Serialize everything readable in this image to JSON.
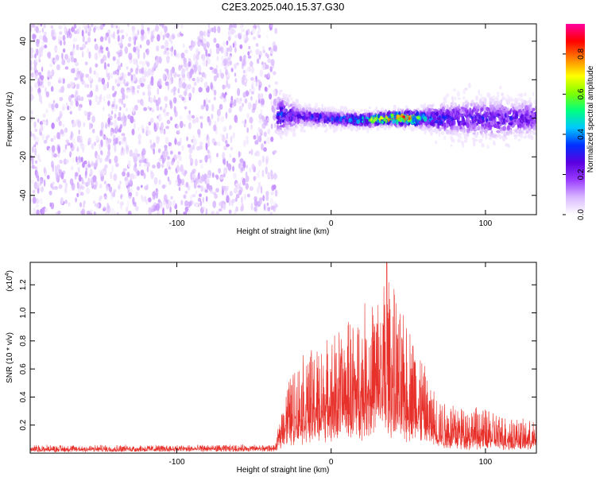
{
  "chart_data": [
    {
      "type": "heatmap",
      "title": "C2E3.2025.040.15.37.G30",
      "xlabel": "Height of straight line (km)",
      "ylabel": "Frequency (Hz)",
      "xlim": [
        -195,
        133
      ],
      "ylim": [
        -50,
        49
      ],
      "x_ticks": [
        -100,
        0,
        100
      ],
      "x_tick_labels": [
        "-100",
        "0",
        "100"
      ],
      "y_ticks": [
        -40,
        -20,
        0,
        20,
        40
      ],
      "y_tick_labels": [
        "-40",
        "-20",
        "0",
        "20",
        "40"
      ],
      "grid": false,
      "noise_region": {
        "x_range": [
          -195,
          -35
        ],
        "freq_range": [
          -50,
          49
        ],
        "typical_amplitude": 0.1
      },
      "signal_band": {
        "x_range": [
          -35,
          133
        ],
        "center_freq": [
          {
            "x": -33,
            "y": 2
          },
          {
            "x": -20,
            "y": 1
          },
          {
            "x": 0,
            "y": 0
          },
          {
            "x": 20,
            "y": -1
          },
          {
            "x": 40,
            "y": 0
          },
          {
            "x": 55,
            "y": 0
          },
          {
            "x": 70,
            "y": 0
          },
          {
            "x": 90,
            "y": 0
          },
          {
            "x": 110,
            "y": 0
          },
          {
            "x": 133,
            "y": 0
          }
        ],
        "half_width_hz": [
          {
            "x": -33,
            "y": 12
          },
          {
            "x": -20,
            "y": 6
          },
          {
            "x": 0,
            "y": 5
          },
          {
            "x": 30,
            "y": 4
          },
          {
            "x": 55,
            "y": 5
          },
          {
            "x": 75,
            "y": 10
          },
          {
            "x": 100,
            "y": 12
          },
          {
            "x": 133,
            "y": 11
          }
        ],
        "peak_amplitude": [
          {
            "x": -33,
            "y": 0.35
          },
          {
            "x": -20,
            "y": 0.3
          },
          {
            "x": 0,
            "y": 0.35
          },
          {
            "x": 20,
            "y": 0.55
          },
          {
            "x": 35,
            "y": 0.8
          },
          {
            "x": 50,
            "y": 0.9
          },
          {
            "x": 60,
            "y": 0.45
          },
          {
            "x": 80,
            "y": 0.3
          },
          {
            "x": 110,
            "y": 0.3
          },
          {
            "x": 133,
            "y": 0.25
          }
        ]
      },
      "colorbar": {
        "label": "Normalized spectral amplitude",
        "range": [
          0,
          0.95
        ],
        "ticks": [
          0.0,
          0.2,
          0.4,
          0.6,
          0.8
        ],
        "tick_labels": [
          "0.0",
          "0.2",
          "0.4",
          "0.6",
          "0.8"
        ],
        "colormap": [
          "#ffffff",
          "#d9b8ff",
          "#9a3cff",
          "#5a00e0",
          "#0030ff",
          "#00c8ff",
          "#00ff80",
          "#80ff00",
          "#ffff00",
          "#ff8000",
          "#ff0000",
          "#ff00a0"
        ]
      }
    },
    {
      "type": "line",
      "xlabel": "Height of straight line (km)",
      "ylabel": "SNR (10 * v/v)",
      "y_multiplier": "(x10",
      "y_multiplier_exp": "4",
      "y_multiplier_close": ")",
      "xlim": [
        -195,
        133
      ],
      "ylim": [
        0,
        1.36
      ],
      "x_ticks": [
        -100,
        0,
        100
      ],
      "x_tick_labels": [
        "-100",
        "0",
        "100"
      ],
      "y_ticks": [
        0.2,
        0.4,
        0.6,
        0.8,
        1.0,
        1.2
      ],
      "y_tick_labels": [
        "0.2",
        "0.4",
        "0.6",
        "0.8",
        "1.0",
        "1.2"
      ],
      "grid": false,
      "series": [
        {
          "color": "#e8302a",
          "envelope_max": [
            {
              "x": -195,
              "y": 0.06
            },
            {
              "x": -36,
              "y": 0.06
            },
            {
              "x": -30,
              "y": 0.5
            },
            {
              "x": -20,
              "y": 0.7
            },
            {
              "x": 0,
              "y": 0.85
            },
            {
              "x": 10,
              "y": 0.95
            },
            {
              "x": 20,
              "y": 1.05
            },
            {
              "x": 30,
              "y": 1.15
            },
            {
              "x": 36,
              "y": 1.36
            },
            {
              "x": 45,
              "y": 1.0
            },
            {
              "x": 55,
              "y": 0.9
            },
            {
              "x": 62,
              "y": 0.55
            },
            {
              "x": 70,
              "y": 0.4
            },
            {
              "x": 100,
              "y": 0.32
            },
            {
              "x": 133,
              "y": 0.22
            }
          ],
          "envelope_base": [
            {
              "x": -195,
              "y": 0.02
            },
            {
              "x": -36,
              "y": 0.03
            },
            {
              "x": -30,
              "y": 0.15
            },
            {
              "x": 0,
              "y": 0.22
            },
            {
              "x": 30,
              "y": 0.3
            },
            {
              "x": 55,
              "y": 0.2
            },
            {
              "x": 70,
              "y": 0.08
            },
            {
              "x": 133,
              "y": 0.05
            }
          ]
        }
      ]
    }
  ]
}
